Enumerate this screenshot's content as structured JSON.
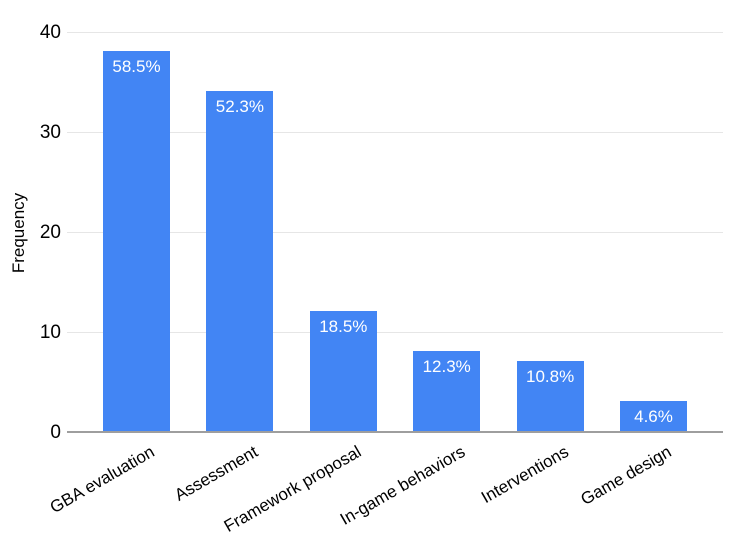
{
  "chart_data": {
    "type": "bar",
    "title": "",
    "xlabel": "",
    "ylabel": "Frequency",
    "categories": [
      "GBA evaluation",
      "Assessment",
      "Framework proposal",
      "In-game behaviors",
      "Interventions",
      "Game design"
    ],
    "values": [
      38,
      34,
      12,
      8,
      7,
      3
    ],
    "bar_labels": [
      "58.5%",
      "52.3%",
      "18.5%",
      "12.3%",
      "10.8%",
      "4.6%"
    ],
    "ylim": [
      0,
      40
    ],
    "yticks": [
      0,
      10,
      20,
      30,
      40
    ],
    "grid": true,
    "legend": "none",
    "x_label_rotation_deg": -30,
    "colors": {
      "bar": "#4285f4",
      "bar_label_text": "#ffffff",
      "gridline": "#e6e6e6",
      "axis_baseline": "#9e9e9e",
      "tick_text": "#000000",
      "background": "#ffffff"
    }
  }
}
